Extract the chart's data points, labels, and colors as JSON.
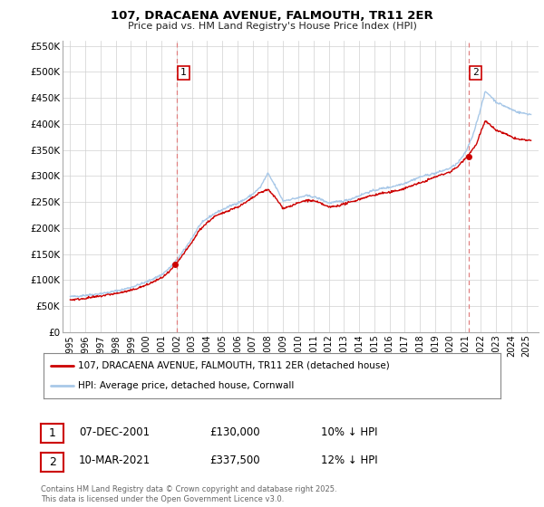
{
  "title": "107, DRACAENA AVENUE, FALMOUTH, TR11 2ER",
  "subtitle": "Price paid vs. HM Land Registry's House Price Index (HPI)",
  "legend_line1": "107, DRACAENA AVENUE, FALMOUTH, TR11 2ER (detached house)",
  "legend_line2": "HPI: Average price, detached house, Cornwall",
  "annotation1_label": "1",
  "annotation1_date": "07-DEC-2001",
  "annotation1_price": "£130,000",
  "annotation1_hpi": "10% ↓ HPI",
  "annotation2_label": "2",
  "annotation2_date": "10-MAR-2021",
  "annotation2_price": "£337,500",
  "annotation2_hpi": "12% ↓ HPI",
  "vline1_x": 2002.0,
  "vline2_x": 2021.2,
  "sale1_x": 2001.92,
  "sale1_y": 130000,
  "sale2_x": 2021.2,
  "sale2_y": 337500,
  "hpi_color": "#a8c8e8",
  "price_color": "#cc0000",
  "vline_color": "#e08080",
  "sale_dot_color": "#cc0000",
  "background_color": "#ffffff",
  "grid_color": "#d0d0d0",
  "ylim_min": 0,
  "ylim_max": 560000,
  "xlim_min": 1994.5,
  "xlim_max": 2025.8,
  "footer": "Contains HM Land Registry data © Crown copyright and database right 2025.\nThis data is licensed under the Open Government Licence v3.0.",
  "yticks": [
    0,
    50000,
    100000,
    150000,
    200000,
    250000,
    300000,
    350000,
    400000,
    450000,
    500000,
    550000
  ],
  "ytick_labels": [
    "£0",
    "£50K",
    "£100K",
    "£150K",
    "£200K",
    "£250K",
    "£300K",
    "£350K",
    "£400K",
    "£450K",
    "£500K",
    "£550K"
  ],
  "xticks": [
    1995,
    1996,
    1997,
    1998,
    1999,
    2000,
    2001,
    2002,
    2003,
    2004,
    2005,
    2006,
    2007,
    2008,
    2009,
    2010,
    2011,
    2012,
    2013,
    2014,
    2015,
    2016,
    2017,
    2018,
    2019,
    2020,
    2021,
    2022,
    2023,
    2024,
    2025
  ],
  "hpi_anchors": [
    [
      1995.0,
      68000
    ],
    [
      1995.5,
      69000
    ],
    [
      1996.0,
      71000
    ],
    [
      1996.5,
      72000
    ],
    [
      1997.0,
      74000
    ],
    [
      1997.5,
      76000
    ],
    [
      1998.0,
      79000
    ],
    [
      1998.5,
      82000
    ],
    [
      1999.0,
      86000
    ],
    [
      1999.5,
      91000
    ],
    [
      2000.0,
      96000
    ],
    [
      2000.5,
      103000
    ],
    [
      2001.0,
      110000
    ],
    [
      2001.5,
      122000
    ],
    [
      2002.0,
      138000
    ],
    [
      2002.5,
      158000
    ],
    [
      2003.0,
      180000
    ],
    [
      2003.5,
      205000
    ],
    [
      2004.0,
      218000
    ],
    [
      2004.5,
      228000
    ],
    [
      2005.0,
      235000
    ],
    [
      2005.5,
      242000
    ],
    [
      2006.0,
      248000
    ],
    [
      2006.5,
      255000
    ],
    [
      2007.0,
      265000
    ],
    [
      2007.5,
      278000
    ],
    [
      2008.0,
      305000
    ],
    [
      2008.5,
      280000
    ],
    [
      2009.0,
      252000
    ],
    [
      2009.5,
      255000
    ],
    [
      2010.0,
      258000
    ],
    [
      2010.5,
      262000
    ],
    [
      2011.0,
      260000
    ],
    [
      2011.5,
      255000
    ],
    [
      2012.0,
      248000
    ],
    [
      2012.5,
      250000
    ],
    [
      2013.0,
      252000
    ],
    [
      2013.5,
      256000
    ],
    [
      2014.0,
      262000
    ],
    [
      2014.5,
      268000
    ],
    [
      2015.0,
      272000
    ],
    [
      2015.5,
      276000
    ],
    [
      2016.0,
      278000
    ],
    [
      2016.5,
      282000
    ],
    [
      2017.0,
      286000
    ],
    [
      2017.5,
      292000
    ],
    [
      2018.0,
      298000
    ],
    [
      2018.5,
      302000
    ],
    [
      2019.0,
      305000
    ],
    [
      2019.5,
      310000
    ],
    [
      2020.0,
      315000
    ],
    [
      2020.5,
      325000
    ],
    [
      2021.0,
      345000
    ],
    [
      2021.5,
      380000
    ],
    [
      2022.0,
      430000
    ],
    [
      2022.3,
      462000
    ],
    [
      2022.6,
      455000
    ],
    [
      2023.0,
      442000
    ],
    [
      2023.5,
      435000
    ],
    [
      2024.0,
      428000
    ],
    [
      2024.5,
      422000
    ],
    [
      2025.3,
      418000
    ]
  ],
  "price_anchors": [
    [
      1995.0,
      62000
    ],
    [
      1995.5,
      63000
    ],
    [
      1996.0,
      65000
    ],
    [
      1996.5,
      67000
    ],
    [
      1997.0,
      69000
    ],
    [
      1997.5,
      72000
    ],
    [
      1998.0,
      74000
    ],
    [
      1998.5,
      77000
    ],
    [
      1999.0,
      80000
    ],
    [
      1999.5,
      85000
    ],
    [
      2000.0,
      90000
    ],
    [
      2000.5,
      97000
    ],
    [
      2001.0,
      104000
    ],
    [
      2001.5,
      115000
    ],
    [
      2002.0,
      132000
    ],
    [
      2002.5,
      152000
    ],
    [
      2003.0,
      172000
    ],
    [
      2003.5,
      196000
    ],
    [
      2004.0,
      210000
    ],
    [
      2004.5,
      222000
    ],
    [
      2005.0,
      228000
    ],
    [
      2005.5,
      235000
    ],
    [
      2006.0,
      240000
    ],
    [
      2006.5,
      248000
    ],
    [
      2007.0,
      258000
    ],
    [
      2007.5,
      268000
    ],
    [
      2008.0,
      274000
    ],
    [
      2008.5,
      258000
    ],
    [
      2009.0,
      238000
    ],
    [
      2009.5,
      242000
    ],
    [
      2010.0,
      248000
    ],
    [
      2010.5,
      253000
    ],
    [
      2011.0,
      252000
    ],
    [
      2011.5,
      247000
    ],
    [
      2012.0,
      240000
    ],
    [
      2012.5,
      242000
    ],
    [
      2013.0,
      246000
    ],
    [
      2013.5,
      250000
    ],
    [
      2014.0,
      255000
    ],
    [
      2014.5,
      260000
    ],
    [
      2015.0,
      263000
    ],
    [
      2015.5,
      267000
    ],
    [
      2016.0,
      268000
    ],
    [
      2016.5,
      272000
    ],
    [
      2017.0,
      276000
    ],
    [
      2017.5,
      282000
    ],
    [
      2018.0,
      286000
    ],
    [
      2018.5,
      292000
    ],
    [
      2019.0,
      298000
    ],
    [
      2019.5,
      303000
    ],
    [
      2020.0,
      308000
    ],
    [
      2020.5,
      318000
    ],
    [
      2021.0,
      335000
    ],
    [
      2021.3,
      345000
    ],
    [
      2021.7,
      360000
    ],
    [
      2022.0,
      385000
    ],
    [
      2022.3,
      405000
    ],
    [
      2022.6,
      398000
    ],
    [
      2023.0,
      388000
    ],
    [
      2023.5,
      382000
    ],
    [
      2024.0,
      375000
    ],
    [
      2024.5,
      370000
    ],
    [
      2025.3,
      368000
    ]
  ]
}
